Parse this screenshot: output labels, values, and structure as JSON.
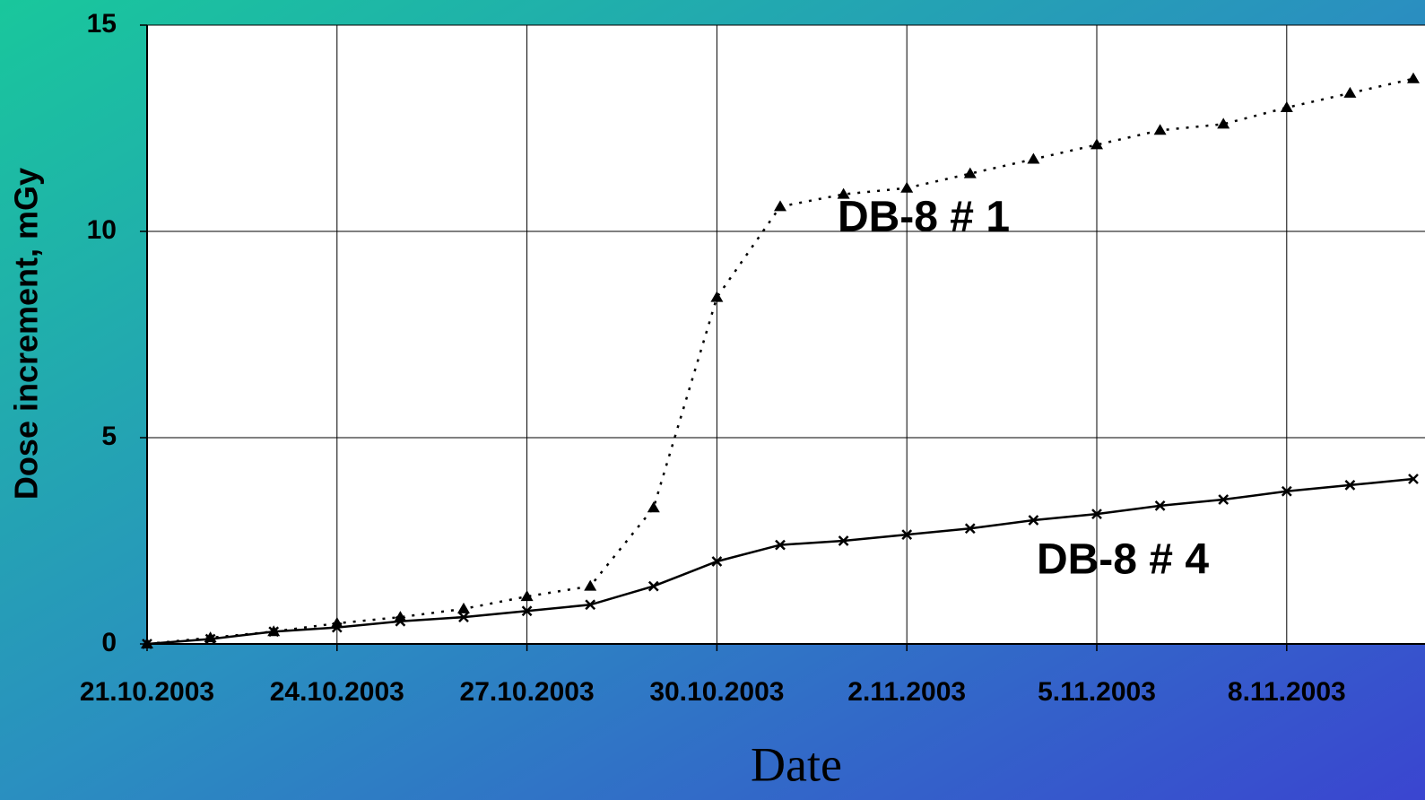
{
  "chart_data": {
    "type": "line",
    "x_label": "Date",
    "y_label": "Dose increment, mGy",
    "x": [
      "2003-10-21",
      "2003-10-22",
      "2003-10-23",
      "2003-10-24",
      "2003-10-25",
      "2003-10-26",
      "2003-10-27",
      "2003-10-28",
      "2003-10-29",
      "2003-10-30",
      "2003-10-31",
      "2003-11-01",
      "2003-11-02",
      "2003-11-03",
      "2003-11-04",
      "2003-11-05",
      "2003-11-06",
      "2003-11-07",
      "2003-11-08",
      "2003-11-09",
      "2003-11-10"
    ],
    "series": [
      {
        "name": "DB-8 # 1",
        "color": "#000000",
        "marker": "triangle",
        "line_style": "dotted",
        "values": [
          0,
          0.15,
          0.3,
          0.5,
          0.65,
          0.85,
          1.15,
          1.4,
          3.3,
          8.4,
          10.6,
          10.9,
          11.05,
          11.4,
          11.75,
          12.1,
          12.45,
          12.6,
          13.0,
          13.35,
          13.7
        ]
      },
      {
        "name": "DB-8 # 4",
        "color": "#000000",
        "marker": "cross",
        "line_style": "solid",
        "values": [
          0,
          0.12,
          0.3,
          0.4,
          0.55,
          0.65,
          0.8,
          0.95,
          1.4,
          2.0,
          2.4,
          2.5,
          2.65,
          2.8,
          3.0,
          3.15,
          3.35,
          3.5,
          3.7,
          3.85,
          4.0
        ]
      }
    ],
    "xlim": [
      "2003-10-21",
      "2003-11-10"
    ],
    "xticks": [
      {
        "value": "2003-10-21",
        "label": "21.10.2003"
      },
      {
        "value": "2003-10-24",
        "label": "24.10.2003"
      },
      {
        "value": "2003-10-27",
        "label": "27.10.2003"
      },
      {
        "value": "2003-10-30",
        "label": "30.10.2003"
      },
      {
        "value": "2003-11-02",
        "label": "2.11.2003"
      },
      {
        "value": "2003-11-05",
        "label": "5.11.2003"
      },
      {
        "value": "2003-11-08",
        "label": "8.11.2003"
      }
    ],
    "ylim": [
      0,
      15
    ],
    "yticks": [
      0,
      5,
      10,
      15
    ],
    "grid": true
  }
}
